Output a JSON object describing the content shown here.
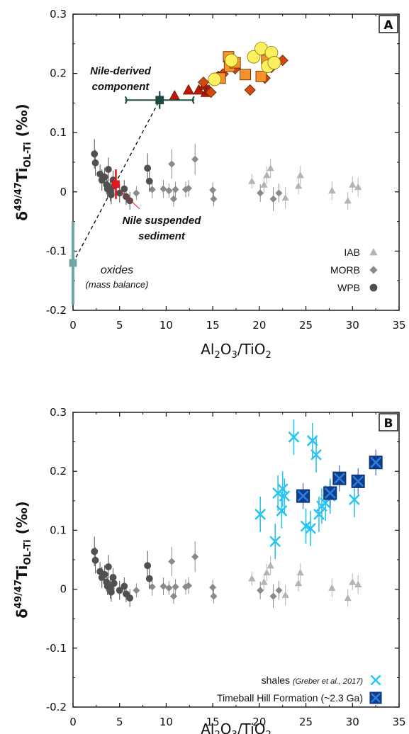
{
  "colors": {
    "iab": "#b4b4b4",
    "morb": "#8a8a8a",
    "wpb": "#505050",
    "oxides": "#6fa6a8",
    "nile_component": "#1e4a44",
    "nile_sediment": "#e8151b",
    "shales": "#29c5f0",
    "timeball": "#0d3f8f",
    "mix_line": "#111111"
  },
  "labels": {
    "ylabel_main": "δ",
    "ylabel_sup": "49/47",
    "ylabel_ti": "Ti",
    "ylabel_sub": "OL-Ti",
    "ylabel_unit": "(‰)",
    "xlabel_al": "Al",
    "xlabel_2a": "2",
    "xlabel_o": "O",
    "xlabel_3": "3",
    "xlabel_ti": "/TiO",
    "xlabel_2b": "2"
  },
  "chart_data": [
    {
      "type": "scatter",
      "panel": "A",
      "xlim": [
        0,
        35
      ],
      "ylim": [
        -0.2,
        0.3
      ],
      "x_ticks": [
        0,
        5,
        10,
        15,
        20,
        25,
        30,
        35
      ],
      "y_ticks": [
        -0.2,
        -0.1,
        0,
        0.1,
        0.2,
        0.3
      ],
      "y_tick_labels": [
        "-0.2",
        "-0.1",
        "0",
        "0.1",
        "0.2",
        "0.3"
      ],
      "legend": [
        "IAB",
        "MORB",
        "WPB"
      ],
      "annotations": {
        "nile_component_1": "Nile-derived",
        "nile_component_2": "component",
        "nile_sediment_1": "Nile suspended",
        "nile_sediment_2": "sediment",
        "oxides_1": "oxides",
        "oxides_2": "(mass balance)"
      },
      "series": [
        {
          "name": "IAB",
          "marker": "triangle",
          "points": [
            [
              19.2,
              0.018,
              0.012
            ],
            [
              20.5,
              0.012,
              0.014
            ],
            [
              20.8,
              0.028,
              0.015
            ],
            [
              21.2,
              0.04,
              0.016
            ],
            [
              22.8,
              -0.01,
              0.018
            ],
            [
              24.2,
              0.01,
              0.014
            ],
            [
              24.4,
              0.028,
              0.016
            ],
            [
              27.8,
              0.002,
              0.016
            ],
            [
              29.5,
              -0.015,
              0.015
            ],
            [
              30.0,
              0.012,
              0.014
            ],
            [
              30.6,
              0.008,
              0.016
            ]
          ]
        },
        {
          "name": "MORB",
          "marker": "diamond",
          "points": [
            [
              6.8,
              -0.002,
              0.012
            ],
            [
              8.5,
              0.004,
              0.015
            ],
            [
              9.7,
              0.005,
              0.015
            ],
            [
              10.3,
              0.002,
              0.012
            ],
            [
              10.6,
              0.047,
              0.025
            ],
            [
              10.8,
              -0.012,
              0.013
            ],
            [
              11.0,
              0.004,
              0.013
            ],
            [
              12.1,
              0.004,
              0.013
            ],
            [
              12.4,
              0.006,
              0.014
            ],
            [
              13.1,
              0.055,
              0.026
            ],
            [
              15.0,
              0.003,
              0.013
            ],
            [
              15.1,
              -0.012,
              0.012
            ],
            [
              20.1,
              -0.002,
              0.015
            ],
            [
              21.5,
              -0.012,
              0.02
            ],
            [
              22.1,
              -0.002,
              0.016
            ]
          ]
        },
        {
          "name": "WPB",
          "marker": "circle",
          "points": [
            [
              2.3,
              0.064,
              0.025
            ],
            [
              2.4,
              0.049,
              0.022
            ],
            [
              2.9,
              0.03,
              0.016
            ],
            [
              3.1,
              0.02,
              0.018
            ],
            [
              3.4,
              0.025,
              0.016
            ],
            [
              3.6,
              0.012,
              0.016
            ],
            [
              3.7,
              0.005,
              0.015
            ],
            [
              3.8,
              0.038,
              0.02
            ],
            [
              4.0,
              0.002,
              0.018
            ],
            [
              4.1,
              -0.005,
              0.016
            ],
            [
              4.3,
              0.02,
              0.016
            ],
            [
              4.4,
              0.01,
              0.015
            ],
            [
              5.0,
              -0.002,
              0.016
            ],
            [
              5.5,
              0.005,
              0.015
            ],
            [
              5.7,
              -0.008,
              0.014
            ],
            [
              6.1,
              -0.015,
              0.015
            ],
            [
              8.0,
              0.04,
              0.025
            ],
            [
              8.2,
              0.018,
              0.018
            ]
          ]
        },
        {
          "name": "",
          "marker": "triangle",
          "color": "#c0160a",
          "points": [
            [
              10.9,
              0.162
            ],
            [
              12.4,
              0.172
            ],
            [
              13.5,
              0.172
            ],
            [
              14.1,
              0.18
            ],
            [
              14.3,
              0.168
            ],
            [
              14.6,
              0.172
            ]
          ]
        },
        {
          "name": "",
          "marker": "diamond",
          "color": "#d14a10",
          "points": [
            [
              14.0,
              0.185
            ],
            [
              14.8,
              0.168
            ],
            [
              15.6,
              0.195
            ],
            [
              16.1,
              0.199
            ],
            [
              17.4,
              0.208
            ],
            [
              19.0,
              0.172
            ],
            [
              20.6,
              0.192
            ],
            [
              21.3,
              0.21
            ],
            [
              22.5,
              0.222
            ]
          ]
        },
        {
          "name": "",
          "marker": "square",
          "color": "#f7912a",
          "points": [
            [
              15.8,
              0.192
            ],
            [
              16.7,
              0.228
            ],
            [
              16.8,
              0.212
            ],
            [
              17.4,
              0.218
            ],
            [
              18.5,
              0.198
            ],
            [
              20.2,
              0.195
            ],
            [
              20.8,
              0.222
            ]
          ]
        },
        {
          "name": "",
          "marker": "circle",
          "color": "#fdf05e",
          "points": [
            [
              15.2,
              0.19
            ],
            [
              17.0,
              0.222
            ],
            [
              19.4,
              0.228
            ],
            [
              20.2,
              0.242
            ],
            [
              20.9,
              0.212
            ],
            [
              21.3,
              0.235
            ],
            [
              21.6,
              0.218
            ]
          ]
        },
        {
          "name": "",
          "marker": "square",
          "color": "#6fa6a8",
          "points": [
            [
              0.0,
              -0.12,
              0.07
            ]
          ]
        },
        {
          "name": "",
          "marker": "square",
          "color": "#1e4a44",
          "points": [
            [
              9.3,
              0.155,
              0.015,
              3.7
            ]
          ]
        },
        {
          "name": "",
          "marker": "square",
          "color": "#e8151b",
          "points": [
            [
              4.6,
              0.013,
              0.025
            ]
          ]
        }
      ]
    },
    {
      "type": "scatter",
      "panel": "B",
      "xlim": [
        0,
        35
      ],
      "ylim": [
        -0.2,
        0.3
      ],
      "x_ticks": [
        0,
        5,
        10,
        15,
        20,
        25,
        30,
        35
      ],
      "y_ticks": [
        -0.2,
        -0.1,
        0,
        0.1,
        0.2,
        0.3
      ],
      "y_tick_labels": [
        "-0.2",
        "-0.1",
        "0",
        "0.1",
        "0.2",
        "0.3"
      ],
      "legend": [
        "shales",
        "(Greber et al., 2017)",
        "Timeball Hill Formation (~2.3 Ga)"
      ],
      "series": [
        {
          "name": "shales",
          "marker": "cross",
          "points": [
            [
              20.1,
              0.127,
              0.03
            ],
            [
              21.7,
              0.081,
              0.03
            ],
            [
              22.0,
              0.163,
              0.03
            ],
            [
              22.4,
              0.133,
              0.03
            ],
            [
              22.5,
              0.17,
              0.03
            ],
            [
              22.7,
              0.158,
              0.03
            ],
            [
              23.7,
              0.258,
              0.03
            ],
            [
              25.0,
              0.107,
              0.03
            ],
            [
              25.5,
              0.103,
              0.03
            ],
            [
              25.7,
              0.252,
              0.03
            ],
            [
              26.1,
              0.228,
              0.03
            ],
            [
              26.4,
              0.127,
              0.03
            ],
            [
              26.7,
              0.141,
              0.03
            ],
            [
              27.1,
              0.146,
              0.03
            ],
            [
              27.6,
              0.158,
              0.03
            ],
            [
              30.2,
              0.152,
              0.03
            ]
          ]
        },
        {
          "name": "Timeball Hill Formation (~2.3 Ga)",
          "marker": "boxcross",
          "points": [
            [
              24.7,
              0.158,
              0.022
            ],
            [
              27.6,
              0.163,
              0.022
            ],
            [
              28.6,
              0.188,
              0.022
            ],
            [
              30.6,
              0.183,
              0.022
            ],
            [
              32.5,
              0.215,
              0.022
            ]
          ]
        },
        {
          "name": "",
          "marker": "triangle",
          "points": [
            [
              19.2,
              0.018,
              0.012
            ],
            [
              20.5,
              0.012,
              0.014
            ],
            [
              20.8,
              0.028,
              0.015
            ],
            [
              21.2,
              0.04,
              0.016
            ],
            [
              22.8,
              -0.01,
              0.018
            ],
            [
              24.2,
              0.01,
              0.014
            ],
            [
              24.4,
              0.028,
              0.016
            ],
            [
              27.8,
              0.002,
              0.016
            ],
            [
              29.5,
              -0.015,
              0.015
            ],
            [
              30.0,
              0.012,
              0.014
            ],
            [
              30.6,
              0.008,
              0.016
            ]
          ]
        },
        {
          "name": "",
          "marker": "diamond",
          "points": [
            [
              6.8,
              -0.002,
              0.012
            ],
            [
              8.5,
              0.004,
              0.015
            ],
            [
              9.7,
              0.005,
              0.015
            ],
            [
              10.3,
              0.002,
              0.012
            ],
            [
              10.6,
              0.047,
              0.025
            ],
            [
              10.8,
              -0.012,
              0.013
            ],
            [
              11.0,
              0.004,
              0.013
            ],
            [
              12.1,
              0.004,
              0.013
            ],
            [
              12.4,
              0.006,
              0.014
            ],
            [
              13.1,
              0.055,
              0.026
            ],
            [
              15.0,
              0.003,
              0.013
            ],
            [
              15.1,
              -0.012,
              0.012
            ],
            [
              20.1,
              -0.002,
              0.015
            ],
            [
              21.5,
              -0.012,
              0.02
            ],
            [
              22.1,
              -0.002,
              0.016
            ]
          ]
        },
        {
          "name": "",
          "marker": "circle",
          "points": [
            [
              2.3,
              0.064,
              0.025
            ],
            [
              2.4,
              0.049,
              0.022
            ],
            [
              2.9,
              0.03,
              0.016
            ],
            [
              3.1,
              0.02,
              0.018
            ],
            [
              3.4,
              0.025,
              0.016
            ],
            [
              3.6,
              0.012,
              0.016
            ],
            [
              3.7,
              0.005,
              0.015
            ],
            [
              3.8,
              0.038,
              0.02
            ],
            [
              4.0,
              0.002,
              0.018
            ],
            [
              4.1,
              -0.005,
              0.016
            ],
            [
              4.3,
              0.02,
              0.016
            ],
            [
              4.4,
              0.01,
              0.015
            ],
            [
              5.0,
              -0.002,
              0.016
            ],
            [
              5.5,
              0.005,
              0.015
            ],
            [
              5.7,
              -0.008,
              0.014
            ],
            [
              6.1,
              -0.015,
              0.015
            ],
            [
              8.0,
              0.04,
              0.025
            ],
            [
              8.2,
              0.018,
              0.018
            ]
          ]
        }
      ]
    }
  ]
}
